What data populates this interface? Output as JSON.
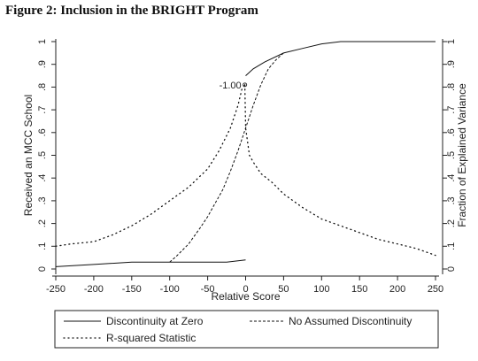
{
  "figure": {
    "title": "Figure 2: Inclusion in the BRIGHT Program"
  },
  "chart_data": {
    "type": "line",
    "xlabel": "Relative Score",
    "ylabel": "Received an MCC School",
    "ylabel_right": "Fraction of Explained Variance",
    "xlim": [
      -250,
      250
    ],
    "ylim": [
      0,
      1
    ],
    "ylim_right": [
      0,
      1
    ],
    "xticks": [
      "-250",
      "-200",
      "-150",
      "-100",
      "-50",
      "0",
      "50",
      "100",
      "150",
      "200",
      "250"
    ],
    "yticks": [
      "0",
      ".1",
      ".2",
      ".3",
      ".4",
      ".5",
      ".6",
      ".7",
      ".8",
      ".9",
      "1"
    ],
    "yticks_right": [
      "0",
      ".1",
      ".2",
      ".3",
      ".4",
      ".5",
      ".6",
      ".7",
      ".8",
      ".9",
      "1"
    ],
    "annotation": {
      "text": "-1.00",
      "x": -1,
      "y": 0.81
    },
    "legend_position": "bottom",
    "series": [
      {
        "name": "Discontinuity at Zero",
        "style": "solid",
        "segments": [
          [
            [
              -250,
              0.01
            ],
            [
              -200,
              0.02
            ],
            [
              -150,
              0.03
            ],
            [
              -100,
              0.03
            ],
            [
              -50,
              0.03
            ],
            [
              -25,
              0.03
            ],
            [
              0,
              0.04
            ]
          ],
          [
            [
              0,
              0.85
            ],
            [
              10,
              0.88
            ],
            [
              25,
              0.91
            ],
            [
              50,
              0.95
            ],
            [
              75,
              0.97
            ],
            [
              100,
              0.99
            ],
            [
              125,
              1.0
            ],
            [
              150,
              1.0
            ],
            [
              200,
              1.0
            ],
            [
              250,
              1.0
            ]
          ]
        ]
      },
      {
        "name": "No Assumed Discontinuity",
        "style": "dashed",
        "segments": [
          [
            [
              -100,
              0.03
            ],
            [
              -90,
              0.06
            ],
            [
              -75,
              0.11
            ],
            [
              -60,
              0.18
            ],
            [
              -50,
              0.23
            ],
            [
              -40,
              0.29
            ],
            [
              -30,
              0.35
            ],
            [
              -20,
              0.43
            ],
            [
              -10,
              0.52
            ],
            [
              0,
              0.62
            ],
            [
              10,
              0.72
            ],
            [
              20,
              0.81
            ],
            [
              30,
              0.88
            ],
            [
              40,
              0.92
            ],
            [
              50,
              0.95
            ]
          ]
        ]
      },
      {
        "name": "R-squared Statistic",
        "style": "dotted",
        "axis": "right",
        "segments": [
          [
            [
              -250,
              0.1
            ],
            [
              -230,
              0.11
            ],
            [
              -200,
              0.12
            ],
            [
              -175,
              0.15
            ],
            [
              -150,
              0.19
            ],
            [
              -125,
              0.24
            ],
            [
              -100,
              0.3
            ],
            [
              -75,
              0.36
            ],
            [
              -50,
              0.44
            ],
            [
              -35,
              0.52
            ],
            [
              -20,
              0.62
            ],
            [
              -10,
              0.72
            ],
            [
              -5,
              0.79
            ],
            [
              -1,
              0.81
            ]
          ],
          [
            [
              -1,
              0.81
            ],
            [
              0,
              0.62
            ],
            [
              5,
              0.5
            ],
            [
              10,
              0.47
            ],
            [
              20,
              0.42
            ],
            [
              35,
              0.38
            ],
            [
              50,
              0.33
            ],
            [
              75,
              0.27
            ],
            [
              100,
              0.22
            ],
            [
              125,
              0.19
            ],
            [
              150,
              0.16
            ],
            [
              175,
              0.13
            ],
            [
              200,
              0.11
            ],
            [
              225,
              0.09
            ],
            [
              250,
              0.06
            ]
          ]
        ]
      }
    ]
  }
}
